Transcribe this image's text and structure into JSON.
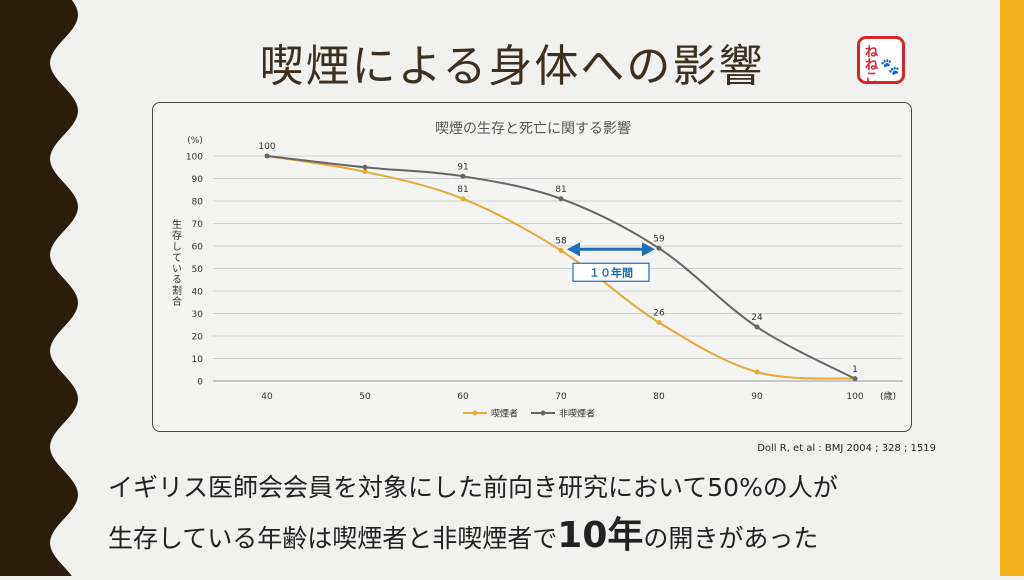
{
  "slide": {
    "title": "喫煙による身体への影響",
    "stamp_lines": [
      "ね",
      "ね",
      "こ"
    ],
    "stamp_paw": "🐾",
    "source": "Doll R, et al : BMJ 2004 ; 328 ; 1519",
    "caption_line1": "イギリス医師会会員を対象にした前向き研究において50%の人が",
    "caption_line2_a": "生存している年齢は喫煙者と非喫煙者で",
    "caption_line2_highlight": "10年",
    "caption_line2_b": "の開きがあった"
  },
  "colors": {
    "left_band": "#2b1d0c",
    "right_band": "#f2b11b",
    "smoker": "#e8a83a",
    "non_smoker": "#666666",
    "arrow": "#1f6fb8",
    "grid": "#cfcfcf"
  },
  "chart_data": {
    "type": "line",
    "title": "喫煙の生存と死亡に関する影響",
    "ylabel": "生存している割合",
    "yunit": "(%)",
    "xunit": "(歳)",
    "x": [
      40,
      50,
      60,
      70,
      80,
      90,
      100
    ],
    "xlim": [
      40,
      100
    ],
    "ylim": [
      0,
      100
    ],
    "yticks": [
      0,
      10,
      20,
      30,
      40,
      50,
      60,
      70,
      80,
      90,
      100
    ],
    "series": [
      {
        "name": "喫煙者",
        "values": [
          100,
          93,
          81,
          58,
          26,
          4,
          1
        ],
        "labels": [
          "",
          "",
          "81",
          "58",
          "26",
          "",
          ""
        ]
      },
      {
        "name": "非喫煙者",
        "values": [
          100,
          95,
          91,
          81,
          59,
          24,
          1
        ],
        "labels": [
          "100",
          "",
          "91",
          "81",
          "59",
          "24",
          "1"
        ]
      }
    ],
    "annotation": {
      "text": "１０年間",
      "from_x": 70,
      "to_x": 80,
      "y": 59
    }
  }
}
